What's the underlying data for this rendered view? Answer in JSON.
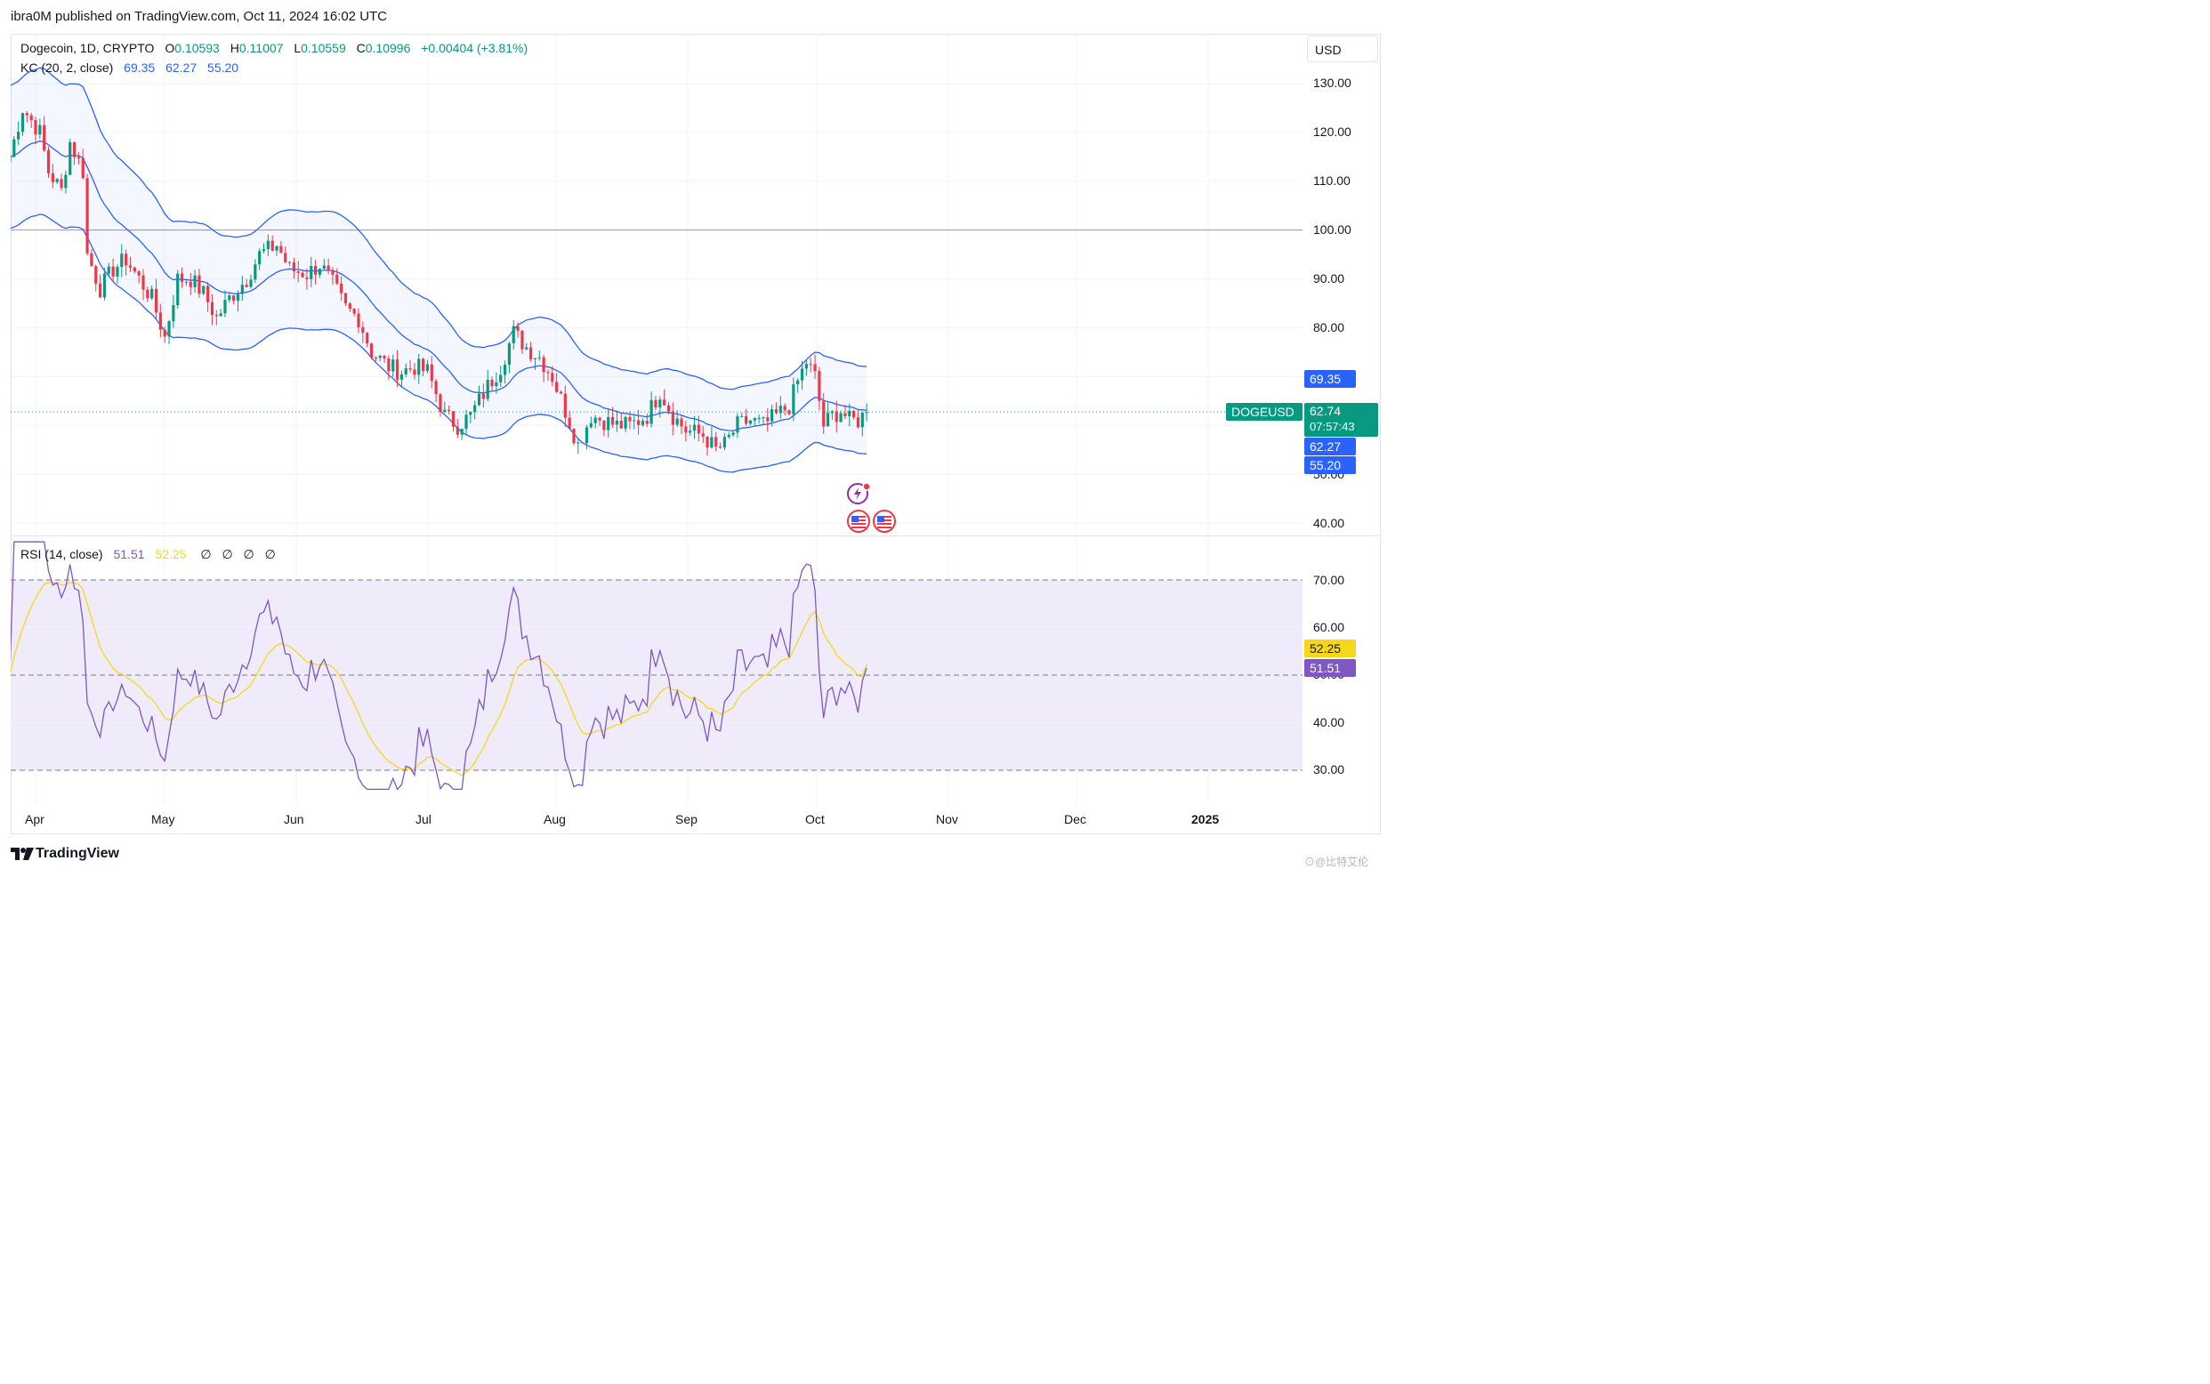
{
  "header": {
    "publisher_line": "ibra0M published on TradingView.com, Oct 11, 2024 16:02 UTC"
  },
  "legend": {
    "symbol": "Dogecoin, 1D, CRYPTO",
    "o_label": "O",
    "o_value": "0.10593",
    "h_label": "H",
    "h_value": "0.11007",
    "l_label": "L",
    "l_value": "0.10559",
    "c_label": "C",
    "c_value": "0.10996",
    "change": "+0.00404 (+3.81%)",
    "kc_label": "KC (20, 2, close)",
    "kc_upper": "69.35",
    "kc_mid": "62.27",
    "kc_lower": "55.20",
    "rsi_label": "RSI (14, close)",
    "rsi_value": "51.51",
    "rsi_ma": "52.25",
    "rsi_nulls": [
      "∅",
      "∅",
      "∅",
      "∅"
    ]
  },
  "currency": "USD",
  "price_axis": [
    "130.00",
    "120.00",
    "110.00",
    "100.00",
    "90.00",
    "80.00",
    "40.00"
  ],
  "price_axis_hidden_partial": "50.00",
  "rsi_axis": [
    "70.00",
    "60.00",
    "40.00",
    "30.00"
  ],
  "rsi_axis_hidden_partial": "50.00",
  "time_axis": [
    "Apr",
    "May",
    "Jun",
    "Jul",
    "Aug",
    "Sep",
    "Oct",
    "Nov",
    "Dec",
    "2025"
  ],
  "tags": {
    "kc_upper": "69.35",
    "symbol": "DOGEUSD",
    "last_price": "62.74",
    "countdown": "07:57:43",
    "kc_mid": "62.27",
    "kc_lower": "55.20",
    "rsi_ma": "52.25",
    "rsi_value": "51.51"
  },
  "branding": {
    "logo_text": "TradingView",
    "watermark": "⊙@比特艾伦"
  },
  "colors": {
    "up": "#089981",
    "down": "#f23645",
    "kc": "#2962ff",
    "rsi": "#7e57c2",
    "rsi_ma": "#f7d71b",
    "rsi_band": "#f0ebfa"
  },
  "chart_data": [
    {
      "type": "candlestick",
      "title": "Dogecoin, 1D, CRYPTO",
      "ylim": [
        35,
        135
      ],
      "x_range": [
        "2024-03-25",
        "2025-01-20"
      ],
      "horizontal_line": 100,
      "series_close": [
        {
          "x": "2024-03-26",
          "y": 115
        },
        {
          "x": "2024-03-29",
          "y": 125
        },
        {
          "x": "2024-04-02",
          "y": 120
        },
        {
          "x": "2024-04-04",
          "y": 112
        },
        {
          "x": "2024-04-07",
          "y": 108
        },
        {
          "x": "2024-04-09",
          "y": 118
        },
        {
          "x": "2024-04-12",
          "y": 112
        },
        {
          "x": "2024-04-13",
          "y": 95
        },
        {
          "x": "2024-04-16",
          "y": 88
        },
        {
          "x": "2024-04-19",
          "y": 92
        },
        {
          "x": "2024-04-22",
          "y": 94
        },
        {
          "x": "2024-04-25",
          "y": 90
        },
        {
          "x": "2024-04-28",
          "y": 86
        },
        {
          "x": "2024-05-01",
          "y": 78
        },
        {
          "x": "2024-05-04",
          "y": 90
        },
        {
          "x": "2024-05-07",
          "y": 90
        },
        {
          "x": "2024-05-10",
          "y": 87
        },
        {
          "x": "2024-05-13",
          "y": 82
        },
        {
          "x": "2024-05-16",
          "y": 86
        },
        {
          "x": "2024-05-20",
          "y": 90
        },
        {
          "x": "2024-05-23",
          "y": 95
        },
        {
          "x": "2024-05-27",
          "y": 97
        },
        {
          "x": "2024-05-30",
          "y": 92
        },
        {
          "x": "2024-06-03",
          "y": 91
        },
        {
          "x": "2024-06-06",
          "y": 93
        },
        {
          "x": "2024-06-09",
          "y": 89
        },
        {
          "x": "2024-06-12",
          "y": 84
        },
        {
          "x": "2024-06-15",
          "y": 82
        },
        {
          "x": "2024-06-18",
          "y": 75
        },
        {
          "x": "2024-06-22",
          "y": 72
        },
        {
          "x": "2024-06-25",
          "y": 71
        },
        {
          "x": "2024-06-28",
          "y": 72
        },
        {
          "x": "2024-07-01",
          "y": 71
        },
        {
          "x": "2024-07-05",
          "y": 62
        },
        {
          "x": "2024-07-08",
          "y": 60
        },
        {
          "x": "2024-07-11",
          "y": 62
        },
        {
          "x": "2024-07-15",
          "y": 68
        },
        {
          "x": "2024-07-18",
          "y": 72
        },
        {
          "x": "2024-07-21",
          "y": 79
        },
        {
          "x": "2024-07-24",
          "y": 76
        },
        {
          "x": "2024-07-27",
          "y": 74
        },
        {
          "x": "2024-07-30",
          "y": 70
        },
        {
          "x": "2024-08-02",
          "y": 63
        },
        {
          "x": "2024-08-05",
          "y": 56
        },
        {
          "x": "2024-08-08",
          "y": 62
        },
        {
          "x": "2024-08-11",
          "y": 61
        },
        {
          "x": "2024-08-14",
          "y": 60
        },
        {
          "x": "2024-08-17",
          "y": 60
        },
        {
          "x": "2024-08-21",
          "y": 62
        },
        {
          "x": "2024-08-24",
          "y": 67
        },
        {
          "x": "2024-08-27",
          "y": 62
        },
        {
          "x": "2024-08-30",
          "y": 59
        },
        {
          "x": "2024-09-03",
          "y": 58
        },
        {
          "x": "2024-09-06",
          "y": 55
        },
        {
          "x": "2024-09-08",
          "y": 56
        },
        {
          "x": "2024-09-11",
          "y": 60
        },
        {
          "x": "2024-09-14",
          "y": 61
        },
        {
          "x": "2024-09-17",
          "y": 60
        },
        {
          "x": "2024-09-20",
          "y": 62
        },
        {
          "x": "2024-09-23",
          "y": 64
        },
        {
          "x": "2024-09-25",
          "y": 69
        },
        {
          "x": "2024-09-27",
          "y": 73
        },
        {
          "x": "2024-09-29",
          "y": 70
        },
        {
          "x": "2024-10-01",
          "y": 60
        },
        {
          "x": "2024-10-03",
          "y": 62
        },
        {
          "x": "2024-10-05",
          "y": 63
        },
        {
          "x": "2024-10-07",
          "y": 61
        },
        {
          "x": "2024-10-09",
          "y": 61
        },
        {
          "x": "2024-10-11",
          "y": 62.74
        }
      ],
      "keltner_channel": {
        "label": "KC (20, 2, close)",
        "upper_last": 69.35,
        "middle_last": 62.27,
        "lower_last": 55.2
      },
      "last_price": 62.74
    },
    {
      "type": "line",
      "title": "RSI (14, close)",
      "ylim": [
        25,
        75
      ],
      "bands": [
        30,
        50,
        70
      ],
      "series": [
        {
          "name": "RSI",
          "values_last": 51.51
        },
        {
          "name": "RSI MA",
          "values_last": 52.25
        }
      ]
    }
  ]
}
